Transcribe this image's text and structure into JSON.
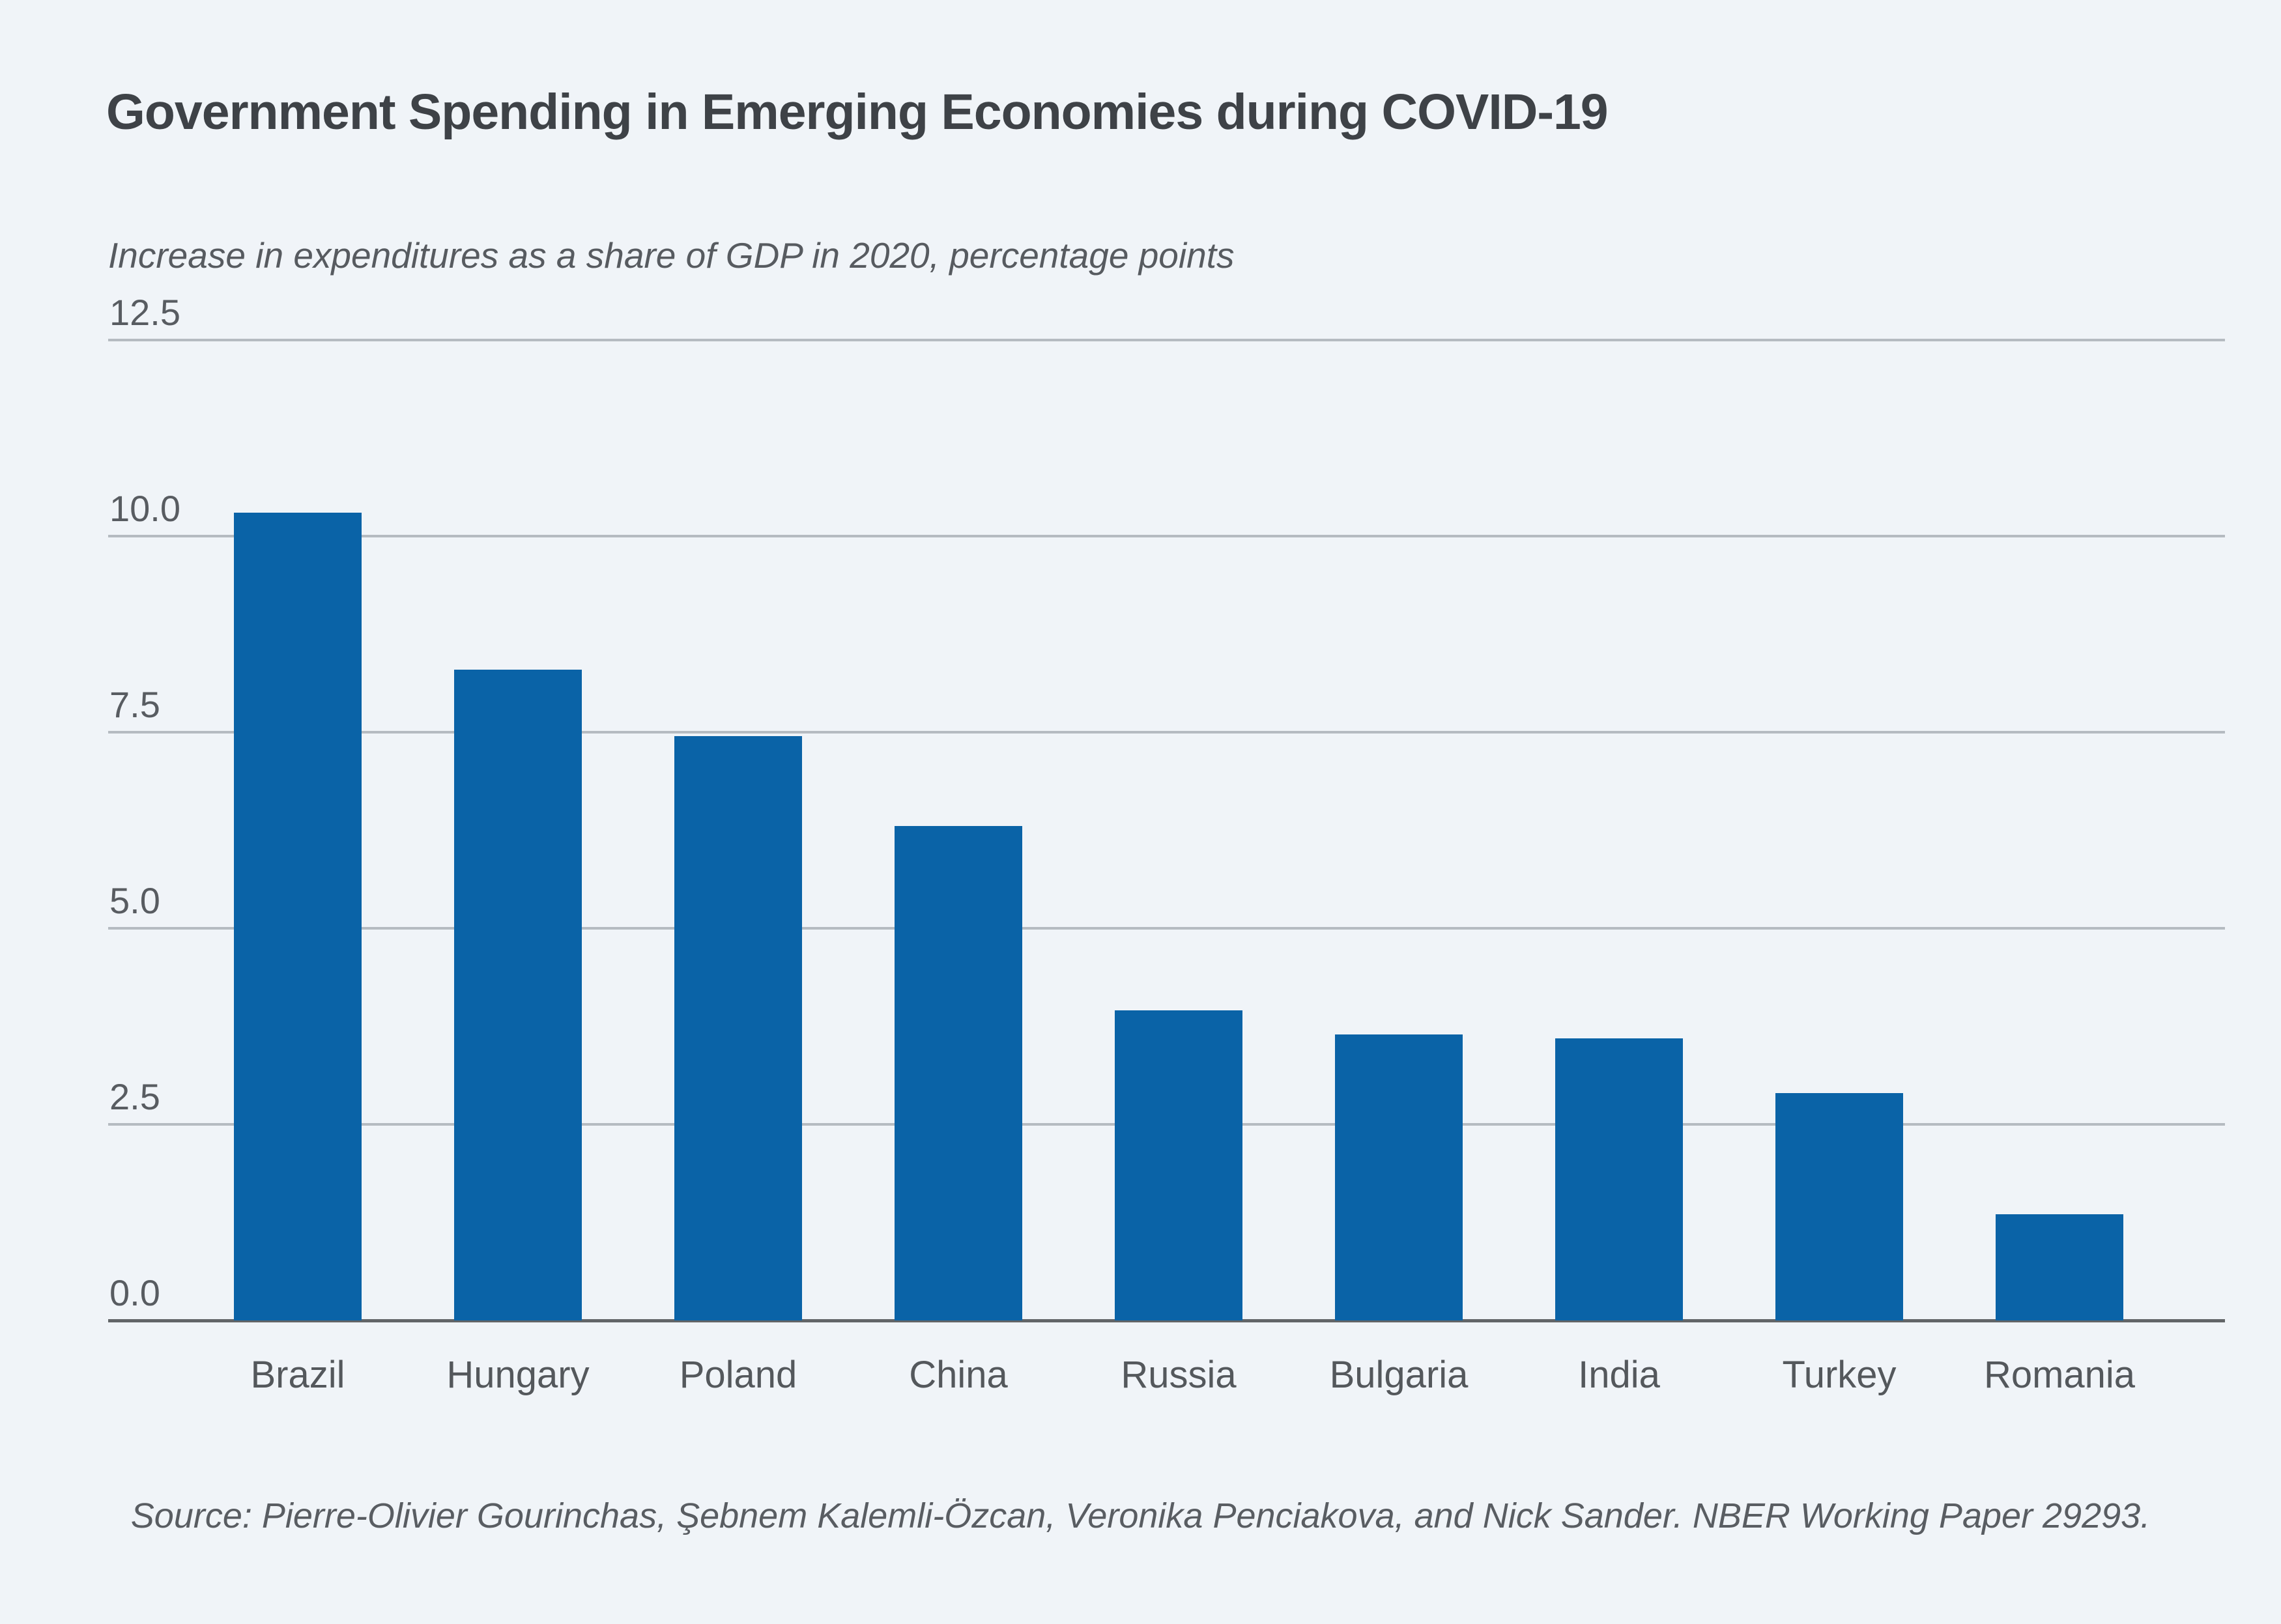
{
  "chart_data": {
    "type": "bar",
    "title": "Government Spending in Emerging Economies during COVID-19",
    "subtitle": "Increase in expenditures as a share of GDP in 2020, percentage points",
    "source": "Source: Pierre-Olivier Gourinchas, Şebnem Kalemli-Özcan, Veronika Penciakova, and Nick Sander. NBER Working Paper 29293.",
    "categories": [
      "Brazil",
      "Hungary",
      "Poland",
      "China",
      "Russia",
      "Bulgaria",
      "India",
      "Turkey",
      "Romania"
    ],
    "values": [
      10.3,
      8.3,
      7.45,
      6.3,
      3.95,
      3.65,
      3.6,
      2.9,
      1.35
    ],
    "xlabel": "",
    "ylabel": "Increase in expenditures as a share of GDP in 2020, percentage points",
    "ylim": [
      0,
      12.5
    ],
    "y_ticks": {
      "values": [
        12.5,
        10.0,
        7.5,
        5.0,
        2.5,
        0.0
      ],
      "labels": [
        "12.5",
        "10.0",
        "7.5",
        "5.0",
        "2.5",
        "0.0"
      ]
    },
    "grid": "horizontal",
    "legend": "none",
    "bar_color": "#0a63a7",
    "background_color": "#f0f4f8",
    "gridline_color": "#b5bbc1",
    "axis_line_color": "#626568"
  }
}
